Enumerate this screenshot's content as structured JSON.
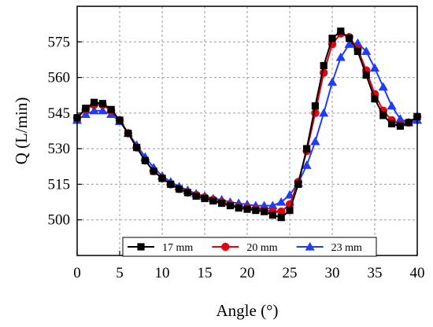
{
  "chart_data": {
    "type": "line",
    "title": "",
    "xlabel": "Angle (°)",
    "ylabel": "Q (L/min)",
    "xlim": [
      0,
      40
    ],
    "ylim": [
      485,
      590
    ],
    "xticks": [
      0,
      5,
      10,
      15,
      20,
      25,
      30,
      35,
      40
    ],
    "yticks": [
      500,
      515,
      530,
      545,
      560,
      575
    ],
    "grid": true,
    "legend_position": "bottom-center",
    "x": [
      0,
      1,
      2,
      3,
      4,
      5,
      6,
      7,
      8,
      9,
      10,
      11,
      12,
      13,
      14,
      15,
      16,
      17,
      18,
      19,
      20,
      21,
      22,
      23,
      24,
      25,
      26,
      27,
      28,
      29,
      30,
      31,
      32,
      33,
      34,
      35,
      36,
      37,
      38,
      39,
      40
    ],
    "series": [
      {
        "name": "17 mm",
        "marker": "square",
        "color": "#000000",
        "values": [
          543,
          547,
          549.5,
          549,
          546.5,
          542,
          536.5,
          530.5,
          525,
          520.5,
          517.5,
          515,
          513,
          511.5,
          510,
          509,
          508,
          507,
          506,
          505,
          504.5,
          504,
          503.5,
          502,
          501,
          504,
          515,
          530,
          548,
          565,
          576.5,
          579.5,
          576.5,
          571,
          561,
          551,
          544,
          540.5,
          539.5,
          541,
          543.5
        ]
      },
      {
        "name": "20 mm",
        "marker": "circle",
        "color": "#e3000f",
        "values": [
          543,
          546.5,
          548.5,
          548.5,
          546,
          542,
          536.5,
          530.5,
          525,
          520.5,
          517.5,
          515,
          513,
          511.5,
          510.5,
          509.5,
          508.5,
          507.5,
          506.5,
          505.5,
          505,
          504.5,
          504,
          503.5,
          503.5,
          506.5,
          516,
          529,
          545,
          562,
          574,
          578.5,
          577,
          572,
          563,
          553,
          546,
          542,
          540,
          541,
          543.5
        ]
      },
      {
        "name": "23 mm",
        "marker": "triangle",
        "color": "#1f3df5",
        "values": [
          542,
          544.5,
          546,
          546,
          544.5,
          541.5,
          536.5,
          531.5,
          526.5,
          522,
          518.5,
          516,
          514,
          512.5,
          511,
          510,
          509,
          508.5,
          507.5,
          507,
          506.5,
          506,
          506,
          506,
          507.5,
          510.5,
          515.5,
          523,
          533,
          545,
          558,
          568.5,
          574,
          574.5,
          571,
          564,
          556,
          548,
          542.5,
          541,
          542
        ]
      }
    ]
  }
}
